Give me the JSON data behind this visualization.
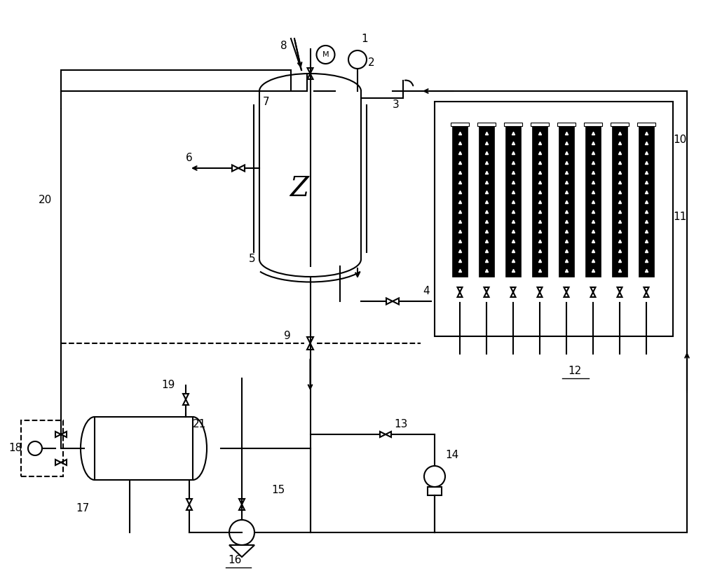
{
  "bg_color": "#ffffff",
  "line_color": "#000000",
  "line_width": 1.5,
  "fig_width": 10.0,
  "fig_height": 8.35
}
